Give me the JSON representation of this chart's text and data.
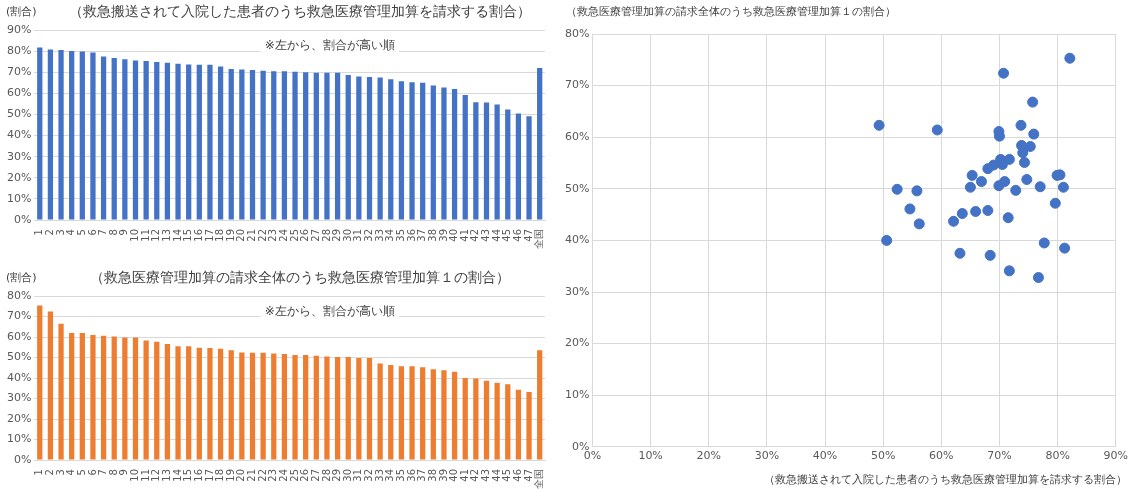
{
  "chart_data": [
    {
      "type": "bar",
      "title": "（救急搬送されて入院した患者のうち救急医療管理加算を請求する割合）",
      "ylabel": "(割合)",
      "annotations": [
        "※左から、割合が高い順"
      ],
      "color": "#4472c4",
      "grid": "y",
      "categories": [
        "1",
        "2",
        "3",
        "4",
        "5",
        "6",
        "7",
        "8",
        "9",
        "10",
        "11",
        "12",
        "13",
        "14",
        "15",
        "16",
        "17",
        "18",
        "19",
        "20",
        "21",
        "22",
        "23",
        "24",
        "25",
        "26",
        "27",
        "28",
        "29",
        "30",
        "31",
        "32",
        "33",
        "34",
        "35",
        "36",
        "37",
        "38",
        "39",
        "40",
        "41",
        "42",
        "43",
        "44",
        "45",
        "46",
        "47",
        "全国"
      ],
      "values": [
        81.7,
        80.8,
        80.5,
        80,
        79.8,
        79.3,
        77.5,
        76.7,
        76.2,
        75.5,
        75.3,
        74.8,
        74.5,
        74,
        73.7,
        73.5,
        73.5,
        72.7,
        71.5,
        71.3,
        71,
        70.7,
        70.5,
        70.5,
        70.2,
        70,
        69.8,
        69.8,
        69.7,
        68.7,
        68,
        67.7,
        67.5,
        66.7,
        65.7,
        65.3,
        65,
        63.7,
        62.8,
        62,
        59.2,
        55.8,
        55.7,
        54.7,
        52.3,
        50.5,
        49.2,
        72
      ],
      "ylim": [
        0,
        90
      ],
      "yticks": [
        {
          "value": 0,
          "label": "0%"
        },
        {
          "value": 10,
          "label": "10%"
        },
        {
          "value": 20,
          "label": "20%"
        },
        {
          "value": 30,
          "label": "30%"
        },
        {
          "value": 40,
          "label": "40%"
        },
        {
          "value": 50,
          "label": "50%"
        },
        {
          "value": 60,
          "label": "60%"
        },
        {
          "value": 70,
          "label": "70%"
        },
        {
          "value": 80,
          "label": "80%"
        },
        {
          "value": 90,
          "label": "90%"
        }
      ]
    },
    {
      "type": "bar",
      "title": "（救急医療管理加算の請求全体のうち救急医療管理加算１の割合）",
      "ylabel": "(割合)",
      "annotations": [
        "※左から、割合が高い順"
      ],
      "color": "#ed7d31",
      "grid": "y",
      "categories": [
        "1",
        "2",
        "3",
        "4",
        "5",
        "6",
        "7",
        "8",
        "9",
        "10",
        "11",
        "12",
        "13",
        "14",
        "15",
        "16",
        "17",
        "18",
        "19",
        "20",
        "21",
        "22",
        "23",
        "24",
        "25",
        "26",
        "27",
        "28",
        "29",
        "30",
        "31",
        "32",
        "33",
        "34",
        "35",
        "36",
        "37",
        "38",
        "39",
        "40",
        "41",
        "42",
        "43",
        "44",
        "45",
        "46",
        "47",
        "全国"
      ],
      "values": [
        75.4,
        72.5,
        66.5,
        62,
        62,
        61,
        60.6,
        60.3,
        59.8,
        59.8,
        58.3,
        57.7,
        56.6,
        55.5,
        55.5,
        54.8,
        54.6,
        54.3,
        53.5,
        52.4,
        52.3,
        52.3,
        52,
        51.7,
        51.2,
        51.2,
        50.8,
        50.5,
        50.2,
        50.2,
        49.7,
        49.7,
        47.1,
        46.3,
        45.7,
        45.7,
        45.2,
        44.3,
        43.8,
        43,
        40,
        39.7,
        38.6,
        37.7,
        37,
        34.3,
        33.2,
        53.5
      ],
      "ylim": [
        0,
        80
      ],
      "yticks": [
        {
          "value": 0,
          "label": "0%"
        },
        {
          "value": 10,
          "label": "10%"
        },
        {
          "value": 20,
          "label": "20%"
        },
        {
          "value": 30,
          "label": "30%"
        },
        {
          "value": 40,
          "label": "40%"
        },
        {
          "value": 50,
          "label": "50%"
        },
        {
          "value": 60,
          "label": "60%"
        },
        {
          "value": 70,
          "label": "70%"
        },
        {
          "value": 80,
          "label": "80%"
        }
      ]
    },
    {
      "type": "scatter",
      "ylabel": "（救急医療管理加算の請求全体のうち救急医療管理加算１の割合）",
      "xlabel": "（救急搬送されて入院した患者のうち救急医療管理加算を請求する割合）",
      "color": "#4472c4",
      "marker": "circle",
      "grid": true,
      "x": [
        82.1,
        70.7,
        75.7,
        49.3,
        59.3,
        73.7,
        69.9,
        70.0,
        75.9,
        73.8,
        75.3,
        74.0,
        70.2,
        71.7,
        70.5,
        74.3,
        69.0,
        68.0,
        65.3,
        80.4,
        79.9,
        66.9,
        70.9,
        74.7,
        65.0,
        69.9,
        72.8,
        77.0,
        81.0,
        52.4,
        55.8,
        79.6,
        54.6,
        63.6,
        65.9,
        68.0,
        71.5,
        56.2,
        62.1,
        50.6,
        77.7,
        81.2,
        63.2,
        68.4,
        71.7,
        76.7
      ],
      "values": [
        75.3,
        72.4,
        66.8,
        62.3,
        61.4,
        62.3,
        61.1,
        60.2,
        60.6,
        58.4,
        58.2,
        57.0,
        55.7,
        55.7,
        54.7,
        55.1,
        54.6,
        53.9,
        52.6,
        52.7,
        52.6,
        51.4,
        51.4,
        51.8,
        50.3,
        50.6,
        49.7,
        50.4,
        50.3,
        49.9,
        49.6,
        47.2,
        46.1,
        45.2,
        45.6,
        45.8,
        44.4,
        43.2,
        43.7,
        40.0,
        39.5,
        38.5,
        37.5,
        37.1,
        34.1,
        32.8
      ],
      "xlim": [
        0,
        90
      ],
      "xticks": [
        {
          "value": 0,
          "label": "0%"
        },
        {
          "value": 10,
          "label": "10%"
        },
        {
          "value": 20,
          "label": "20%"
        },
        {
          "value": 30,
          "label": "30%"
        },
        {
          "value": 40,
          "label": "40%"
        },
        {
          "value": 50,
          "label": "50%"
        },
        {
          "value": 60,
          "label": "60%"
        },
        {
          "value": 70,
          "label": "70%"
        },
        {
          "value": 80,
          "label": "80%"
        },
        {
          "value": 90,
          "label": "90%"
        }
      ],
      "ylim": [
        0,
        80
      ],
      "yticks": [
        {
          "value": 0,
          "label": "0%"
        },
        {
          "value": 10,
          "label": "10%"
        },
        {
          "value": 20,
          "label": "20%"
        },
        {
          "value": 30,
          "label": "30%"
        },
        {
          "value": 40,
          "label": "40%"
        },
        {
          "value": 50,
          "label": "50%"
        },
        {
          "value": 60,
          "label": "60%"
        },
        {
          "value": 70,
          "label": "70%"
        },
        {
          "value": 80,
          "label": "80%"
        }
      ]
    }
  ]
}
